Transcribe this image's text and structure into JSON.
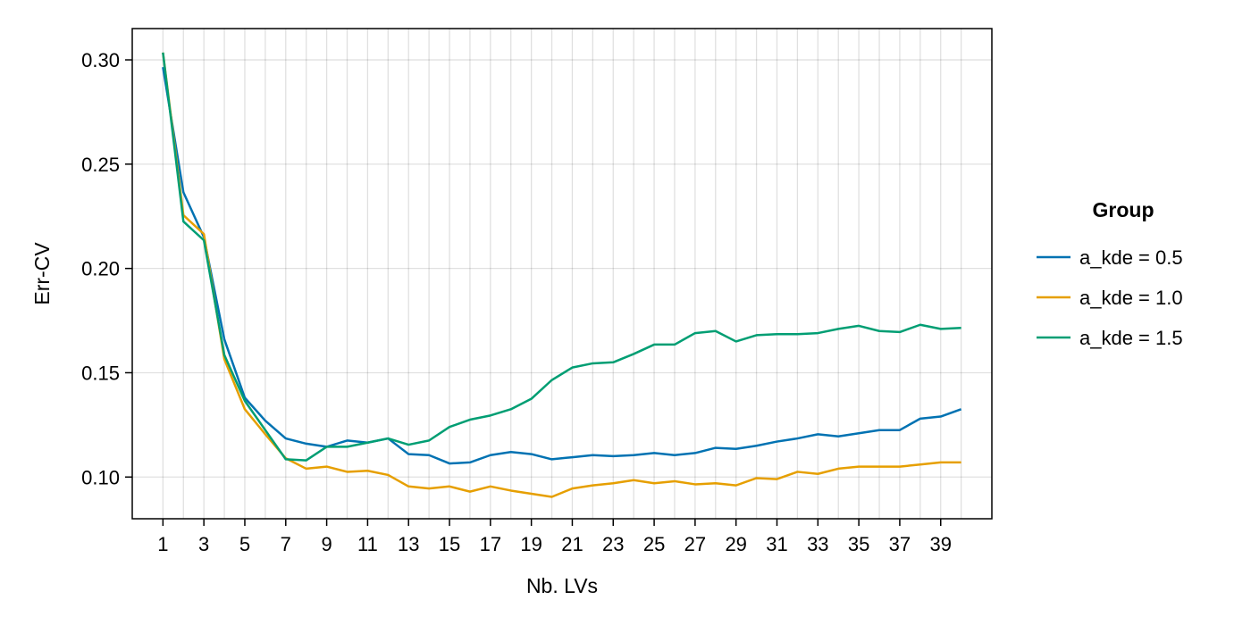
{
  "chart_data": {
    "type": "line",
    "title": "",
    "xlabel": "Nb. LVs",
    "ylabel": "Err-CV",
    "xlim": [
      -0.5,
      41.5
    ],
    "ylim": [
      0.08,
      0.315
    ],
    "x_ticks": [
      1,
      3,
      5,
      7,
      9,
      11,
      13,
      15,
      17,
      19,
      21,
      23,
      25,
      27,
      29,
      31,
      33,
      35,
      37,
      39
    ],
    "x_grid": [
      1,
      2,
      3,
      4,
      5,
      6,
      7,
      8,
      9,
      10,
      11,
      12,
      13,
      14,
      15,
      16,
      17,
      18,
      19,
      20,
      21,
      22,
      23,
      24,
      25,
      26,
      27,
      28,
      29,
      30,
      31,
      32,
      33,
      34,
      35,
      36,
      37,
      38,
      39,
      40
    ],
    "y_ticks": [
      0.1,
      0.15,
      0.2,
      0.25,
      0.3
    ],
    "y_tick_labels": [
      "0.10",
      "0.15",
      "0.20",
      "0.25",
      "0.30"
    ],
    "x_tick_labels": [
      "1",
      "3",
      "5",
      "7",
      "9",
      "11",
      "13",
      "15",
      "17",
      "19",
      "21",
      "23",
      "25",
      "27",
      "29",
      "31",
      "33",
      "35",
      "37",
      "39"
    ],
    "grid": true,
    "legend": {
      "title": "Group",
      "placement": "right"
    },
    "x": [
      1,
      2,
      3,
      4,
      5,
      6,
      7,
      8,
      9,
      10,
      11,
      12,
      13,
      14,
      15,
      16,
      17,
      18,
      19,
      20,
      21,
      22,
      23,
      24,
      25,
      26,
      27,
      28,
      29,
      30,
      31,
      32,
      33,
      34,
      35,
      36,
      37,
      38,
      39,
      40
    ],
    "series": [
      {
        "name": "a_kde = 0.5",
        "color": "#0072b2",
        "values": [
          0.2965,
          0.2365,
          0.215,
          0.166,
          0.138,
          0.127,
          0.1185,
          0.116,
          0.1145,
          0.1175,
          0.1165,
          0.1185,
          0.111,
          0.1105,
          0.1065,
          0.107,
          0.1105,
          0.112,
          0.111,
          0.1085,
          0.1095,
          0.1105,
          0.11,
          0.1105,
          0.1115,
          0.1105,
          0.1115,
          0.114,
          0.1135,
          0.115,
          0.117,
          0.1185,
          0.1205,
          0.1195,
          0.121,
          0.1225,
          0.1225,
          0.128,
          0.129,
          0.1325
        ]
      },
      {
        "name": "a_kde = 1.0",
        "color": "#e69f00",
        "values": [
          0.3035,
          0.2255,
          0.2165,
          0.1565,
          0.1325,
          0.1205,
          0.109,
          0.104,
          0.105,
          0.1025,
          0.103,
          0.101,
          0.0955,
          0.0945,
          0.0955,
          0.093,
          0.0955,
          0.0935,
          0.092,
          0.0905,
          0.0945,
          0.096,
          0.097,
          0.0985,
          0.097,
          0.098,
          0.0965,
          0.097,
          0.096,
          0.0995,
          0.099,
          0.1025,
          0.1015,
          0.104,
          0.105,
          0.105,
          0.105,
          0.106,
          0.107,
          0.107
        ]
      },
      {
        "name": "a_kde = 1.5",
        "color": "#009e73",
        "values": [
          0.3035,
          0.2225,
          0.2135,
          0.1585,
          0.1365,
          0.1225,
          0.1085,
          0.108,
          0.1145,
          0.1145,
          0.1165,
          0.1185,
          0.1155,
          0.1175,
          0.124,
          0.1275,
          0.1295,
          0.1325,
          0.1375,
          0.1465,
          0.1525,
          0.1545,
          0.155,
          0.159,
          0.1635,
          0.1635,
          0.169,
          0.17,
          0.165,
          0.168,
          0.1685,
          0.1685,
          0.169,
          0.171,
          0.1725,
          0.17,
          0.1695,
          0.173,
          0.171,
          0.1715
        ]
      }
    ]
  }
}
